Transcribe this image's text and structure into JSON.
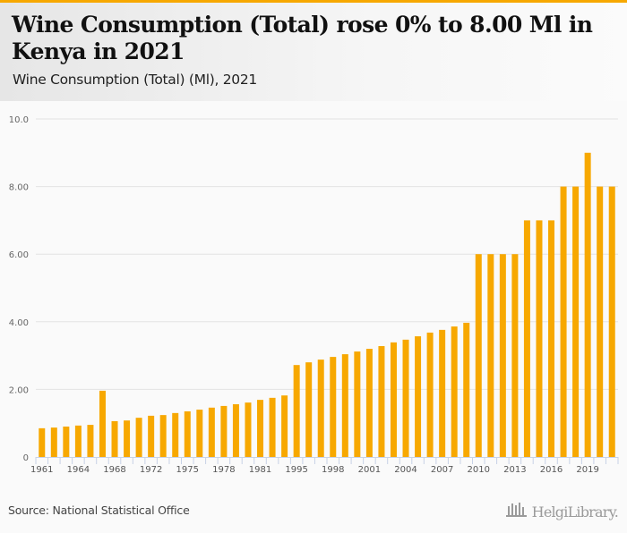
{
  "header": {
    "title": "Wine Consumption (Total) rose 0% to 8.00 Ml in Kenya in 2021",
    "subtitle": "Wine Consumption (Total) (Ml), 2021"
  },
  "footer": {
    "source": "Source: National Statistical Office",
    "logo_text": "HelgiLibrary.",
    "logo_icon": "bar-chart-icon"
  },
  "colors": {
    "accent": "#f7a800",
    "bar": "#f7a800",
    "grid": "#e3e3e3",
    "axis": "#c8d2e6"
  },
  "chart_data": {
    "type": "bar",
    "title": "Wine Consumption (Total) rose 0% to 8.00 Ml in Kenya in 2021",
    "subtitle": "Wine Consumption (Total) (Ml), 2021",
    "xlabel": "",
    "ylabel": "",
    "ylim": [
      0,
      10
    ],
    "yticks": [
      0,
      2,
      4,
      6,
      8,
      10
    ],
    "ytick_labels": [
      "0",
      "2.00",
      "4.00",
      "6.00",
      "8.00",
      "10.0"
    ],
    "grid": true,
    "legend": "none",
    "categories": [
      "1961",
      "1962",
      "1963",
      "1964",
      "1965",
      "1966",
      "1968",
      "1969",
      "1970",
      "1972",
      "1973",
      "1974",
      "1975",
      "1976",
      "1977",
      "1978",
      "1979",
      "1980",
      "1981",
      "1982",
      "1983",
      "1995",
      "1996",
      "1997",
      "1998",
      "1999",
      "2000",
      "2001",
      "2002",
      "2003",
      "2004",
      "2005",
      "2006",
      "2007",
      "2008",
      "2009",
      "2010",
      "2011",
      "2012",
      "2013",
      "2014",
      "2015",
      "2016",
      "2017",
      "2018",
      "2019",
      "2020",
      "2021"
    ],
    "xtick_labels_shown": [
      "1961",
      "1964",
      "1968",
      "1972",
      "1975",
      "1978",
      "1981",
      "1995",
      "1998",
      "2001",
      "2004",
      "2007",
      "2010",
      "2013",
      "2016",
      "2019"
    ],
    "values": [
      0.85,
      0.87,
      0.9,
      0.93,
      0.95,
      1.96,
      1.06,
      1.08,
      1.16,
      1.22,
      1.24,
      1.3,
      1.35,
      1.4,
      1.46,
      1.51,
      1.56,
      1.61,
      1.69,
      1.75,
      1.82,
      2.72,
      2.8,
      2.88,
      2.96,
      3.04,
      3.12,
      3.2,
      3.28,
      3.39,
      3.47,
      3.57,
      3.68,
      3.76,
      3.86,
      3.97,
      6.0,
      6.0,
      6.0,
      6.0,
      7.0,
      7.0,
      7.0,
      8.0,
      8.0,
      9.0,
      8.0,
      8.0
    ]
  }
}
